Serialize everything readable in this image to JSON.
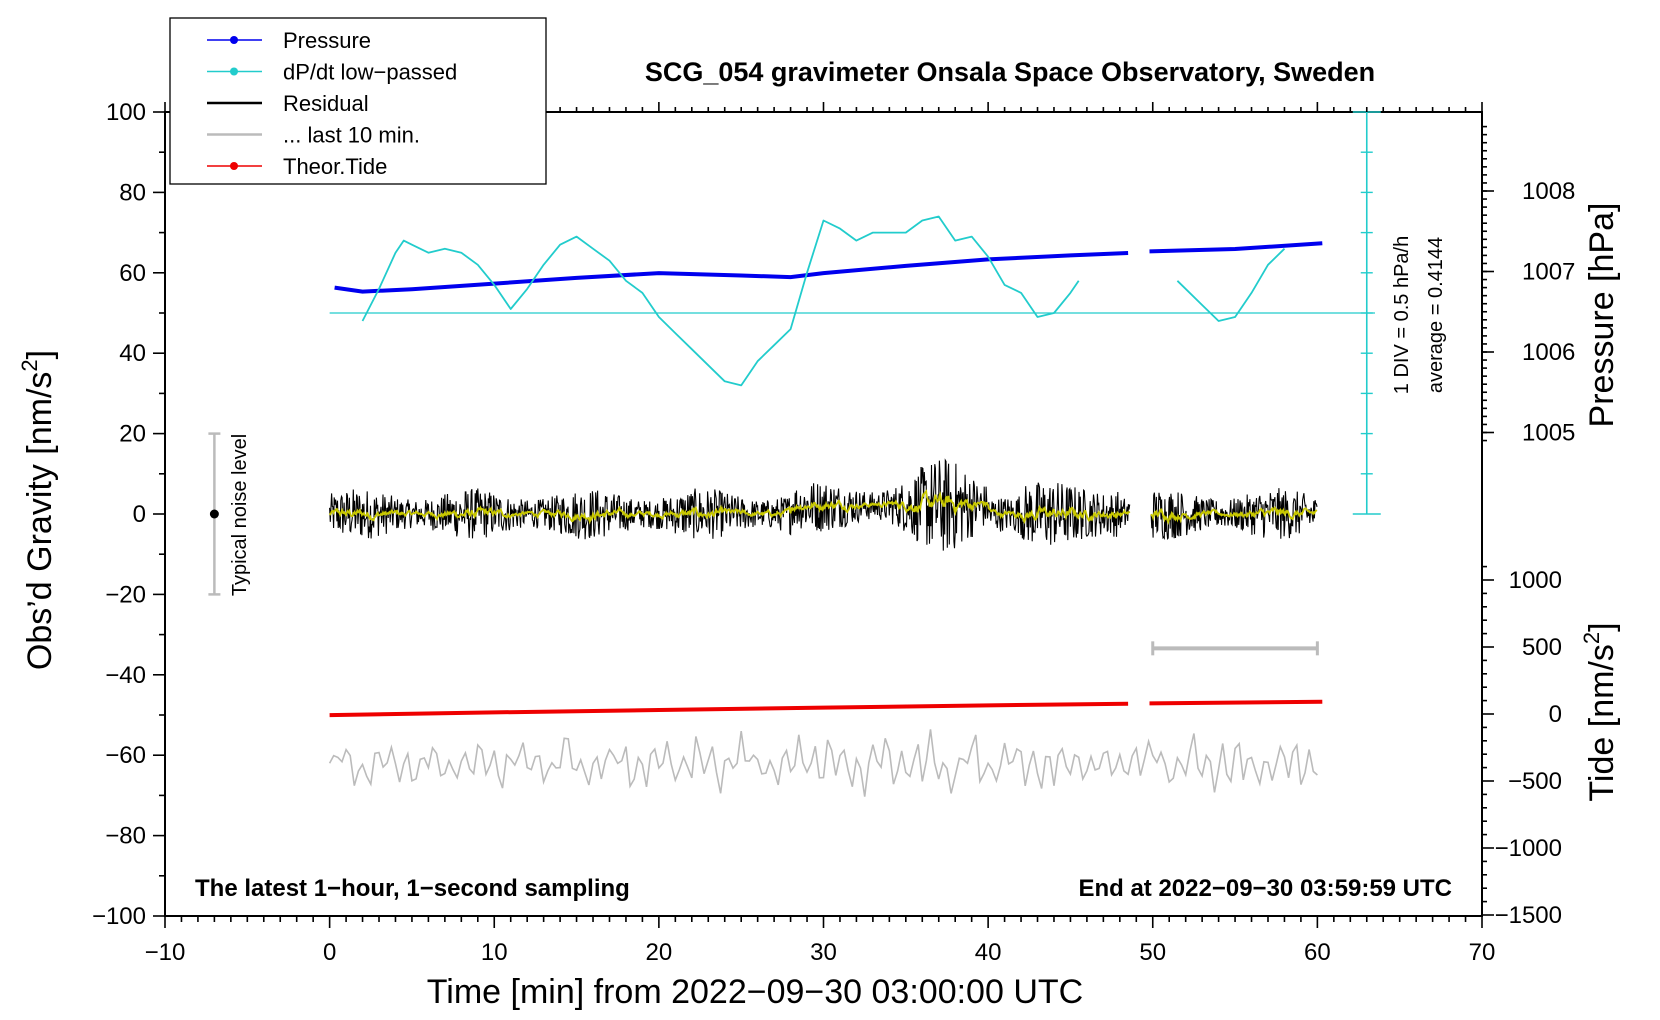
{
  "chart_data": {
    "type": "line",
    "title": "SCG_054 gravimeter Onsala Space Observatory, Sweden",
    "xlabel": "Time [min] from 2022−09−30 03:00:00 UTC",
    "ylabel_left": "Obs’d Gravity [nm/s²]",
    "ylabel_left_text": "Obs’d Gravity [nm/s",
    "ylabel_left_sup": "2",
    "ylabel_left_close": "]",
    "ylabel_pressure": "Pressure [hPa]",
    "ylabel_tide": "Tide [nm/s²]",
    "ylabel_tide_text": "Tide [nm/s",
    "ylabel_tide_sup": "2",
    "ylabel_tide_close": "]",
    "xlim": [
      -10,
      70
    ],
    "ylim_left": [
      -100,
      100
    ],
    "xticks": [
      -10,
      0,
      10,
      20,
      30,
      40,
      50,
      60,
      70
    ],
    "xtick_labels": [
      "−10",
      "0",
      "10",
      "20",
      "30",
      "40",
      "50",
      "60",
      "70"
    ],
    "yticks_left": [
      -100,
      -80,
      -60,
      -40,
      -20,
      0,
      20,
      40,
      60,
      80,
      100
    ],
    "ytick_labels_left": [
      "−100",
      "−80",
      "−60",
      "−40",
      "−20",
      "0",
      "20",
      "40",
      "60",
      "80",
      "100"
    ],
    "pressure_ticks": [
      1005,
      1006,
      1007,
      1008
    ],
    "pressure_tick_labels": [
      "1005",
      "1006",
      "1007",
      "1008"
    ],
    "tide_ticks": [
      -1500,
      -1000,
      -500,
      0,
      500,
      1000
    ],
    "tide_tick_labels": [
      "−1500",
      "−1000",
      "−500",
      "0",
      "500",
      "1000"
    ],
    "series": [
      {
        "name": "Pressure",
        "color": "#0000ee",
        "unit": "hPa",
        "x": [
          0.3,
          2,
          5,
          10,
          15,
          20,
          25,
          28,
          30,
          35,
          40,
          45,
          48.5,
          49.8,
          55,
          60.3
        ],
        "y": [
          1006.8,
          1006.75,
          1006.78,
          1006.85,
          1006.92,
          1006.98,
          1006.95,
          1006.93,
          1006.98,
          1007.07,
          1007.15,
          1007.2,
          1007.23,
          1007.25,
          1007.28,
          1007.35
        ]
      },
      {
        "name": "dP/dt low−passed",
        "color": "#22cccc",
        "unit": "nm/s² (plot units)",
        "segments": [
          {
            "x": [
              2,
              3,
              4,
              4.5,
              5,
              6,
              7,
              8,
              9,
              10,
              11,
              12,
              13,
              14,
              15,
              16,
              17,
              18,
              19,
              20,
              21,
              22,
              23,
              24,
              25,
              26,
              27,
              28,
              29,
              30,
              31,
              32,
              33,
              34,
              35,
              36,
              37,
              38,
              39,
              40,
              41,
              42,
              43,
              44,
              45,
              45.5
            ],
            "y": [
              48,
              56,
              65,
              68,
              67,
              65,
              66,
              65,
              62,
              57,
              51,
              56,
              62,
              67,
              69,
              66,
              63,
              58,
              55,
              49,
              45,
              41,
              37,
              33,
              32,
              38,
              42,
              46,
              60,
              73,
              71,
              68,
              70,
              70,
              70,
              73,
              74,
              68,
              69,
              64,
              57,
              55,
              49,
              50,
              55,
              58
            ]
          },
          {
            "x": [
              51.5,
              53,
              54,
              55,
              56,
              57,
              58
            ],
            "y": [
              58,
              52,
              48,
              49,
              55,
              62,
              66
            ]
          }
        ]
      },
      {
        "name": "Residual",
        "color": "#000000",
        "unit": "nm/s²"
      },
      {
        "name": "... last 10 min.",
        "color": "#bbbbbb",
        "unit": "nm/s²"
      },
      {
        "name": "Theor.Tide",
        "color": "#ee0000",
        "unit": "nm/s²",
        "x": [
          0,
          10,
          20,
          30,
          40,
          48.5,
          49.8,
          60.3
        ],
        "y": [
          -8,
          12,
          30,
          48,
          64,
          77,
          79,
          92
        ]
      }
    ],
    "noise_level": {
      "label": "Typical noise level",
      "x": -7,
      "center": 0,
      "range": [
        -20,
        20
      ]
    },
    "dpdt_scale": {
      "baseline": 50,
      "label1": "1 DIV = 0.5 hPa/h",
      "label2": "average = 0.4144"
    },
    "last10_bracket": {
      "x": [
        50,
        60
      ],
      "tide_level": 490
    },
    "annotation_left": "The latest 1−hour, 1−second sampling",
    "annotation_right": "End at 2022−09−30 03:59:59 UTC",
    "legend": [
      "Pressure",
      "dP/dt low−passed",
      "Residual",
      "... last 10 min.",
      "Theor.Tide"
    ]
  }
}
